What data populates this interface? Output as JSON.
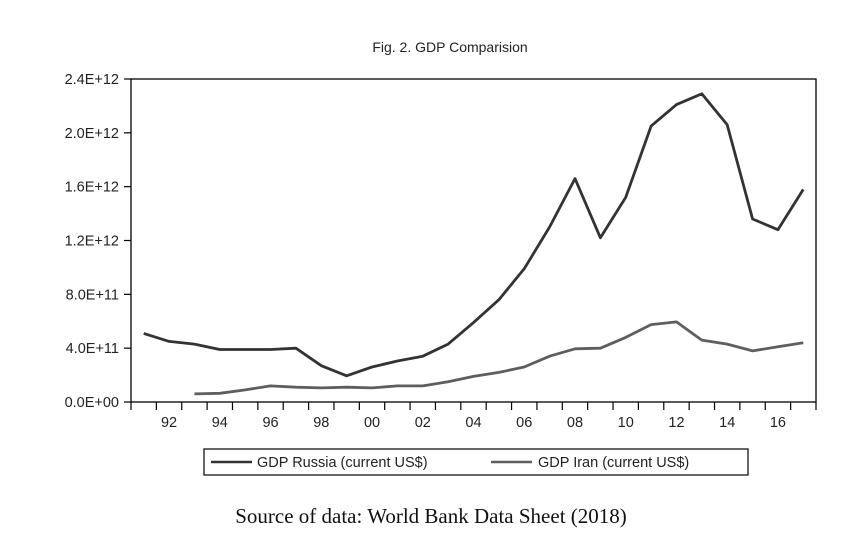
{
  "chart_data": {
    "type": "line",
    "title": "Fig. 2. GDP Comparision",
    "xlabel": "",
    "ylabel": "",
    "x": [
      1991,
      1992,
      1993,
      1994,
      1995,
      1996,
      1997,
      1998,
      1999,
      2000,
      2001,
      2002,
      2003,
      2004,
      2005,
      2006,
      2007,
      2008,
      2009,
      2010,
      2011,
      2012,
      2013,
      2014,
      2015,
      2016,
      2017
    ],
    "x_ticks": [
      {
        "year": 1992,
        "label": "92"
      },
      {
        "year": 1994,
        "label": "94"
      },
      {
        "year": 1996,
        "label": "96"
      },
      {
        "year": 1998,
        "label": "98"
      },
      {
        "year": 2000,
        "label": "00"
      },
      {
        "year": 2002,
        "label": "02"
      },
      {
        "year": 2004,
        "label": "04"
      },
      {
        "year": 2006,
        "label": "06"
      },
      {
        "year": 2008,
        "label": "08"
      },
      {
        "year": 2010,
        "label": "10"
      },
      {
        "year": 2012,
        "label": "12"
      },
      {
        "year": 2014,
        "label": "14"
      },
      {
        "year": 2016,
        "label": "16"
      }
    ],
    "xlim": [
      1990.5,
      2017.5
    ],
    "ylim": [
      0,
      2400000000000.0
    ],
    "y_ticks": [
      {
        "value": 0,
        "label": "0.0E+00"
      },
      {
        "value": 400000000000.0,
        "label": "4.0E+11"
      },
      {
        "value": 800000000000.0,
        "label": "8.0E+11"
      },
      {
        "value": 1200000000000.0,
        "label": "1.2E+12"
      },
      {
        "value": 1600000000000.0,
        "label": "1.6E+12"
      },
      {
        "value": 2000000000000.0,
        "label": "2.0E+12"
      },
      {
        "value": 2400000000000.0,
        "label": "2.4E+12"
      }
    ],
    "grid": false,
    "legend_position": "bottom",
    "series": [
      {
        "name": "GDP Russia (current US$)",
        "color": "#333333",
        "values": [
          510000000000.0,
          450000000000.0,
          430000000000.0,
          390000000000.0,
          390000000000.0,
          390000000000.0,
          400000000000.0,
          270000000000.0,
          195000000000.0,
          260000000000.0,
          305000000000.0,
          340000000000.0,
          430000000000.0,
          590000000000.0,
          760000000000.0,
          990000000000.0,
          1300000000000.0,
          1660000000000.0,
          1220000000000.0,
          1520000000000.0,
          2050000000000.0,
          2210000000000.0,
          2290000000000.0,
          2060000000000.0,
          1360000000000.0,
          1280000000000.0,
          1580000000000.0
        ]
      },
      {
        "name": "GDP Iran (current US$)",
        "color": "#5e5e5e",
        "values": [
          null,
          null,
          60000000000.0,
          65000000000.0,
          90000000000.0,
          120000000000.0,
          110000000000.0,
          105000000000.0,
          110000000000.0,
          105000000000.0,
          120000000000.0,
          120000000000.0,
          150000000000.0,
          190000000000.0,
          220000000000.0,
          260000000000.0,
          340000000000.0,
          395000000000.0,
          400000000000.0,
          480000000000.0,
          575000000000.0,
          595000000000.0,
          460000000000.0,
          430000000000.0,
          380000000000.0,
          410000000000.0,
          440000000000.0
        ]
      }
    ]
  },
  "caption": "Source of data: World Bank Data Sheet (2018)"
}
